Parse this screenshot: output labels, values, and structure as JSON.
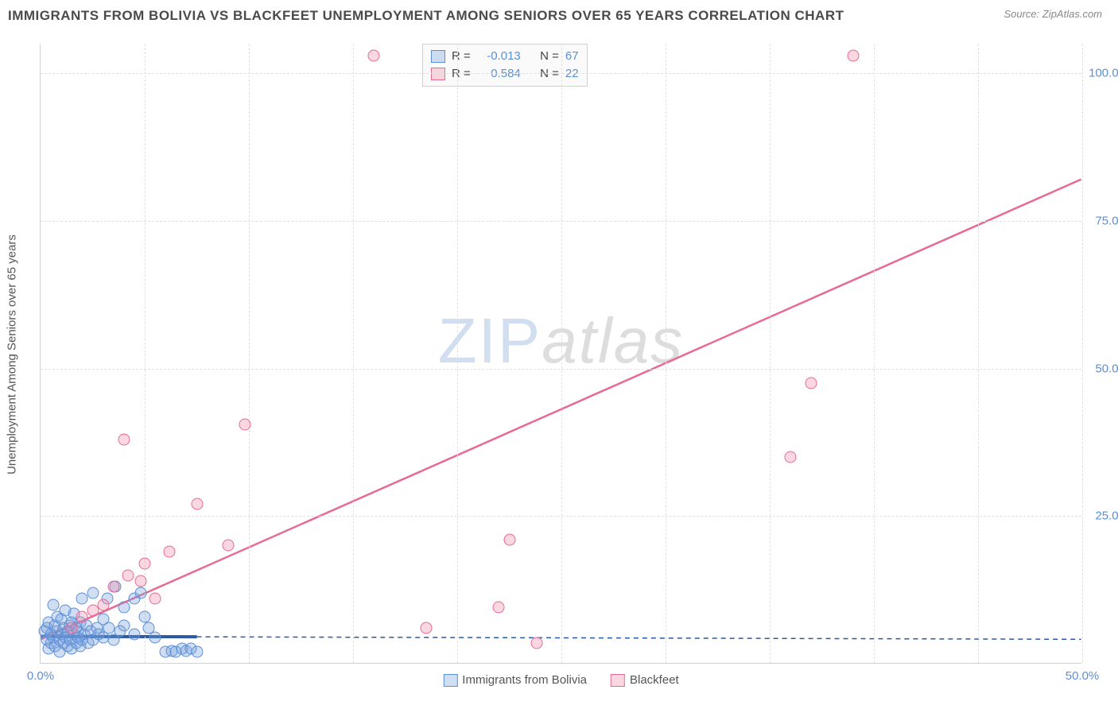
{
  "title": "IMMIGRANTS FROM BOLIVIA VS BLACKFEET UNEMPLOYMENT AMONG SENIORS OVER 65 YEARS CORRELATION CHART",
  "source": "Source: ZipAtlas.com",
  "watermark": {
    "part1": "ZIP",
    "part2": "atlas"
  },
  "y_axis_title": "Unemployment Among Seniors over 65 years",
  "chart": {
    "type": "scatter",
    "xlim": [
      0,
      50
    ],
    "ylim": [
      0,
      105
    ],
    "x_ticks": [
      0,
      5,
      10,
      15,
      20,
      25,
      30,
      35,
      40,
      45,
      50
    ],
    "x_tick_labels": {
      "0": "0.0%",
      "50": "50.0%"
    },
    "y_ticks": [
      25,
      50,
      75,
      100
    ],
    "y_tick_labels": {
      "25": "25.0%",
      "50": "50.0%",
      "75": "75.0%",
      "100": "100.0%"
    },
    "background_color": "#ffffff",
    "grid_color": "#e0e0e0",
    "axis_color": "#d0d0d0",
    "tick_label_color": "#5b8fd6",
    "title_color": "#4a4a4a",
    "title_fontsize": 17,
    "label_fontsize": 15
  },
  "series": [
    {
      "name": "Immigrants from Bolivia",
      "color_fill": "rgba(120,160,220,0.35)",
      "color_stroke": "#5b8fd6",
      "marker_size": 15,
      "r_value": "-0.013",
      "n_value": "67",
      "trend": {
        "x1": 0,
        "y1": 4.5,
        "x2": 50,
        "y2": 4.0,
        "solid_until_x": 7.5,
        "color": "#2c5aa0",
        "width_solid": 4,
        "width_dash": 1.5,
        "dash": "6,5"
      },
      "points": [
        [
          0.2,
          5.5
        ],
        [
          0.3,
          4.0
        ],
        [
          0.3,
          6.0
        ],
        [
          0.4,
          2.5
        ],
        [
          0.4,
          7.0
        ],
        [
          0.5,
          3.5
        ],
        [
          0.5,
          5.0
        ],
        [
          0.6,
          4.5
        ],
        [
          0.6,
          10.0
        ],
        [
          0.7,
          6.5
        ],
        [
          0.7,
          3.0
        ],
        [
          0.8,
          5.5
        ],
        [
          0.8,
          8.0
        ],
        [
          0.9,
          4.0
        ],
        [
          0.9,
          2.0
        ],
        [
          1.0,
          5.0
        ],
        [
          1.0,
          7.5
        ],
        [
          1.1,
          3.5
        ],
        [
          1.1,
          6.0
        ],
        [
          1.2,
          4.5
        ],
        [
          1.2,
          9.0
        ],
        [
          1.3,
          5.5
        ],
        [
          1.3,
          3.0
        ],
        [
          1.4,
          6.5
        ],
        [
          1.4,
          4.0
        ],
        [
          1.5,
          7.0
        ],
        [
          1.5,
          2.5
        ],
        [
          1.6,
          5.0
        ],
        [
          1.6,
          8.5
        ],
        [
          1.7,
          3.5
        ],
        [
          1.7,
          6.0
        ],
        [
          1.8,
          4.5
        ],
        [
          1.8,
          5.5
        ],
        [
          1.9,
          3.0
        ],
        [
          1.9,
          7.0
        ],
        [
          2.0,
          4.0
        ],
        [
          2.0,
          11.0
        ],
        [
          2.1,
          5.0
        ],
        [
          2.2,
          6.5
        ],
        [
          2.3,
          3.5
        ],
        [
          2.4,
          5.5
        ],
        [
          2.5,
          4.0
        ],
        [
          2.5,
          12.0
        ],
        [
          2.7,
          6.0
        ],
        [
          2.8,
          5.0
        ],
        [
          3.0,
          4.5
        ],
        [
          3.0,
          7.5
        ],
        [
          3.2,
          11.0
        ],
        [
          3.3,
          6.0
        ],
        [
          3.5,
          4.0
        ],
        [
          3.6,
          13.0
        ],
        [
          3.8,
          5.5
        ],
        [
          4.0,
          9.5
        ],
        [
          4.0,
          6.5
        ],
        [
          4.5,
          5.0
        ],
        [
          4.5,
          11.0
        ],
        [
          4.8,
          12.0
        ],
        [
          5.0,
          8.0
        ],
        [
          5.2,
          6.0
        ],
        [
          5.5,
          4.5
        ],
        [
          6.0,
          2.0
        ],
        [
          6.3,
          2.2
        ],
        [
          6.5,
          2.0
        ],
        [
          6.8,
          2.5
        ],
        [
          7.0,
          2.2
        ],
        [
          7.2,
          2.5
        ],
        [
          7.5,
          2.0
        ]
      ]
    },
    {
      "name": "Blackfeet",
      "color_fill": "rgba(240,140,170,0.35)",
      "color_stroke": "#e86a92",
      "marker_size": 15,
      "r_value": "0.584",
      "n_value": "22",
      "trend": {
        "x1": 0,
        "y1": 4.0,
        "x2": 50,
        "y2": 82.0,
        "solid_until_x": 50,
        "color": "#e86a92",
        "width_solid": 2.5
      },
      "points": [
        [
          1.5,
          6.0
        ],
        [
          2.0,
          8.0
        ],
        [
          2.5,
          9.0
        ],
        [
          3.0,
          10.0
        ],
        [
          3.5,
          13.0
        ],
        [
          4.0,
          38.0
        ],
        [
          4.2,
          15.0
        ],
        [
          4.8,
          14.0
        ],
        [
          5.0,
          17.0
        ],
        [
          5.5,
          11.0
        ],
        [
          6.2,
          19.0
        ],
        [
          7.5,
          27.0
        ],
        [
          9.0,
          20.0
        ],
        [
          9.8,
          40.5
        ],
        [
          16.0,
          103.0
        ],
        [
          18.5,
          6.0
        ],
        [
          22.0,
          9.5
        ],
        [
          22.5,
          21.0
        ],
        [
          23.8,
          3.5
        ],
        [
          37.0,
          47.5
        ],
        [
          39.0,
          103.0
        ],
        [
          36.0,
          35.0
        ]
      ]
    }
  ],
  "stats_legend": {
    "r_label": "R =",
    "n_label": "N ="
  },
  "legend_labels": [
    "Immigrants from Bolivia",
    "Blackfeet"
  ]
}
